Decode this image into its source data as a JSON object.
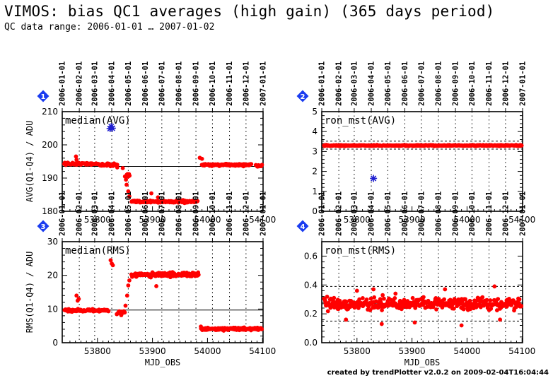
{
  "header": {
    "title": "VIMOS: bias QC1 averages (high gain) (365 days period)",
    "subtitle": "QC data range: 2006-01-01 … 2007-01-02",
    "credit": "created by trendPlotter v2.0.2 on 2009-02-04T16:04:44"
  },
  "colors": {
    "points": "#ff0000",
    "outlier": "#1f1fd0",
    "badge": "#1a3cf0",
    "axis": "#000000",
    "grid": "#000000"
  },
  "date_ticks": [
    "2006-01-01",
    "2006-02-01",
    "2006-03-01",
    "2006-04-01",
    "2006-05-01",
    "2006-06-01",
    "2006-07-01",
    "2006-08-01",
    "2006-09-01",
    "2006-10-01",
    "2006-11-01",
    "2006-12-01",
    "2007-01-01"
  ],
  "chart_data": [
    {
      "type": "scatter",
      "panel": "1",
      "label": "median(AVG)",
      "ylabel": "AVG(Q1-Q4) / ADU",
      "xlabel": "",
      "xlim": [
        53736,
        54101
      ],
      "ylim": [
        180,
        210
      ],
      "yticks": [
        180,
        190,
        200,
        210
      ],
      "xticks": [
        53800,
        53900,
        54000,
        54100
      ],
      "reference_line": 193.5,
      "dashed_lines": [],
      "segments": [
        {
          "x0": 53740,
          "x1": 53800,
          "y": 194.3,
          "noise": 0.35
        },
        {
          "x0": 53802,
          "x1": 53836,
          "y": 194.0,
          "noise": 0.4
        },
        {
          "x0": 53850,
          "x1": 53858,
          "y": 190.5,
          "noise": 1.4
        },
        {
          "x0": 53862,
          "x1": 53982,
          "y": 182.9,
          "noise": 0.35
        },
        {
          "x0": 53990,
          "x1": 54080,
          "y": 194.0,
          "noise": 0.35
        },
        {
          "x0": 54088,
          "x1": 54099,
          "y": 193.7,
          "noise": 0.25
        }
      ],
      "points": [
        [
          53761,
          196.5
        ],
        [
          53762,
          195.5
        ],
        [
          53836,
          193.2
        ],
        [
          53846,
          193.0
        ],
        [
          53853,
          188
        ],
        [
          53856,
          186
        ],
        [
          53858,
          184.5
        ],
        [
          53898,
          185.4
        ],
        [
          53910,
          184.2
        ],
        [
          53986,
          196.1
        ],
        [
          53990,
          195.8
        ]
      ],
      "outliers": [
        [
          53825,
          205.5
        ],
        [
          53827,
          205.0
        ],
        [
          53823,
          204.9
        ]
      ]
    },
    {
      "type": "scatter",
      "panel": "2",
      "label": "ron_mst(AVG)",
      "ylabel": "",
      "xlabel": "",
      "xlim": [
        53736,
        54101
      ],
      "ylim": [
        0,
        5
      ],
      "yticks": [
        0,
        1,
        2,
        3,
        4,
        5
      ],
      "xticks": [
        53800,
        53900,
        54000,
        54100
      ],
      "reference_line": 3.32,
      "dashed_lines": [
        3.12,
        3.52
      ],
      "segments": [
        {
          "x0": 53740,
          "x1": 54099,
          "y": 3.3,
          "noise": 0.025
        }
      ],
      "points": [],
      "outliers": [
        [
          53830,
          1.65
        ]
      ]
    },
    {
      "type": "scatter",
      "panel": "3",
      "label": "median(RMS)",
      "ylabel": "RMS(Q1-Q4) / ADU",
      "xlabel": "MJD_OBS",
      "xlim": [
        53736,
        54101
      ],
      "ylim": [
        0,
        30
      ],
      "yticks": [
        0,
        10,
        20,
        30
      ],
      "xticks": [
        53800,
        53900,
        54000,
        54100
      ],
      "reference_line": 9.7,
      "dashed_lines": [],
      "segments": [
        {
          "x0": 53740,
          "x1": 53820,
          "y": 9.6,
          "noise": 0.35
        },
        {
          "x0": 53835,
          "x1": 53850,
          "y": 8.8,
          "noise": 0.5
        },
        {
          "x0": 53862,
          "x1": 53984,
          "y": 20.2,
          "noise": 0.6
        },
        {
          "x0": 53988,
          "x1": 54099,
          "y": 4.1,
          "noise": 0.35
        }
      ],
      "points": [
        [
          53762,
          14.0
        ],
        [
          53764,
          12.5
        ],
        [
          53766,
          13.0
        ],
        [
          53824,
          24.5
        ],
        [
          53826,
          23.5
        ],
        [
          53828,
          23.0
        ],
        [
          53851,
          11
        ],
        [
          53854,
          14
        ],
        [
          53856,
          17
        ],
        [
          53858,
          18.5
        ],
        [
          53907,
          16.8
        ],
        [
          53988,
          4.8
        ]
      ],
      "outliers": []
    },
    {
      "type": "scatter",
      "panel": "4",
      "label": "ron_mst(RMS)",
      "ylabel": "",
      "xlabel": "MJD_OBS",
      "xlim": [
        53736,
        54101
      ],
      "ylim": [
        0,
        0.7
      ],
      "yticks": [
        0,
        0.2,
        0.4,
        0.6
      ],
      "xticks": [
        53800,
        53900,
        54000,
        54100
      ],
      "reference_line": 0.27,
      "dashed_lines": [
        0.15,
        0.39
      ],
      "segments": [
        {
          "x0": 53740,
          "x1": 54099,
          "y": 0.27,
          "noise": 0.04
        }
      ],
      "points": [
        [
          53800,
          0.36
        ],
        [
          53830,
          0.37
        ],
        [
          53870,
          0.34
        ],
        [
          53960,
          0.37
        ],
        [
          54050,
          0.39
        ],
        [
          53780,
          0.16
        ],
        [
          53845,
          0.13
        ],
        [
          53905,
          0.14
        ],
        [
          53990,
          0.12
        ],
        [
          54060,
          0.16
        ]
      ],
      "outliers": []
    }
  ]
}
